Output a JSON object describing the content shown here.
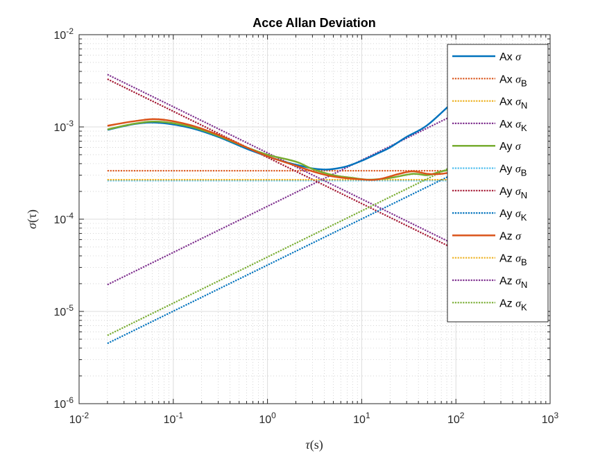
{
  "chart_data": {
    "type": "line",
    "title": "Acce Allan Deviation",
    "xlabel": {
      "symbol": "τ",
      "unit": "(s)"
    },
    "ylabel": {
      "symbol": "σ",
      "arg": "(τ)"
    },
    "xscale": "log",
    "yscale": "log",
    "xlim": [
      0.01,
      1000
    ],
    "ylim": [
      1e-06,
      0.01
    ],
    "x_ticks": [
      {
        "base": "10",
        "exp": "-2"
      },
      {
        "base": "10",
        "exp": "-1"
      },
      {
        "base": "10",
        "exp": "0"
      },
      {
        "base": "10",
        "exp": "1"
      },
      {
        "base": "10",
        "exp": "2"
      },
      {
        "base": "10",
        "exp": "3"
      }
    ],
    "y_ticks": [
      {
        "base": "10",
        "exp": "-6"
      },
      {
        "base": "10",
        "exp": "-5"
      },
      {
        "base": "10",
        "exp": "-4"
      },
      {
        "base": "10",
        "exp": "-3"
      },
      {
        "base": "10",
        "exp": "-2"
      }
    ],
    "grid": true,
    "minor_grid": true,
    "legend_position": "top-right",
    "series": [
      {
        "axis": "Ax",
        "sym": "σ",
        "sub": "",
        "color": "#0072BD",
        "style": "solid",
        "points": [
          [
            0.02,
            0.00093
          ],
          [
            0.04,
            0.00108
          ],
          [
            0.07,
            0.00111
          ],
          [
            0.15,
            0.00098
          ],
          [
            0.3,
            0.00078
          ],
          [
            0.6,
            0.00058
          ],
          [
            1,
            0.00048
          ],
          [
            1.5,
            0.00042
          ],
          [
            2,
            0.00039
          ],
          [
            3,
            0.000355
          ],
          [
            4,
            0.000345
          ],
          [
            5,
            0.00035
          ],
          [
            7,
            0.000375
          ],
          [
            10,
            0.00043
          ],
          [
            15,
            0.00052
          ],
          [
            20,
            0.0006
          ],
          [
            30,
            0.00078
          ],
          [
            50,
            0.00105
          ],
          [
            100,
            0.002
          ]
        ]
      },
      {
        "axis": "Ax",
        "sym": "σ",
        "sub": "B",
        "color": "#D95319",
        "style": "dotted",
        "points": [
          [
            0.02,
            0.000335
          ],
          [
            100,
            0.000335
          ]
        ]
      },
      {
        "axis": "Ax",
        "sym": "σ",
        "sub": "N",
        "color": "#EDB120",
        "style": "dotted",
        "points": [
          [
            0.02,
            0.000265
          ],
          [
            100,
            0.000265
          ]
        ]
      },
      {
        "axis": "Ax",
        "sym": "σ",
        "sub": "K",
        "color": "#7E2F8E",
        "style": "dotted",
        "points": [
          [
            0.02,
            1.95e-05
          ],
          [
            100,
            0.00138
          ]
        ]
      },
      {
        "axis": "Ay",
        "sym": "σ",
        "sub": "",
        "color": "#77AC30",
        "style": "solid",
        "points": [
          [
            0.02,
            0.00094
          ],
          [
            0.04,
            0.00109
          ],
          [
            0.07,
            0.00114
          ],
          [
            0.15,
            0.00101
          ],
          [
            0.3,
            0.0008
          ],
          [
            0.6,
            0.0006
          ],
          [
            1,
            0.0005
          ],
          [
            2,
            0.00042
          ],
          [
            3,
            0.00035
          ],
          [
            5,
            0.0003
          ],
          [
            8,
            0.00028
          ],
          [
            12,
            0.000268
          ],
          [
            20,
            0.00028
          ],
          [
            35,
            0.00031
          ],
          [
            50,
            0.0003
          ],
          [
            70,
            0.00033
          ],
          [
            100,
            0.00035
          ]
        ]
      },
      {
        "axis": "Ay",
        "sym": "σ",
        "sub": "B",
        "color": "#4DBEEE",
        "style": "dotted",
        "points": [
          [
            0.02,
            0.000262
          ],
          [
            100,
            0.000262
          ]
        ]
      },
      {
        "axis": "Ay",
        "sym": "σ",
        "sub": "N",
        "color": "#A2142F",
        "style": "dotted",
        "points": [
          [
            0.02,
            0.0033
          ],
          [
            100,
            4.67e-05
          ]
        ]
      },
      {
        "axis": "Ay",
        "sym": "σ",
        "sub": "K",
        "color": "#0072BD",
        "style": "dotted",
        "points": [
          [
            0.02,
            4.5e-06
          ],
          [
            100,
            0.000318
          ]
        ]
      },
      {
        "axis": "Az",
        "sym": "σ",
        "sub": "",
        "color": "#D95319",
        "style": "solid",
        "points": [
          [
            0.02,
            0.00103
          ],
          [
            0.04,
            0.00116
          ],
          [
            0.07,
            0.00121
          ],
          [
            0.15,
            0.00105
          ],
          [
            0.3,
            0.00082
          ],
          [
            0.6,
            0.0006
          ],
          [
            1,
            0.00048
          ],
          [
            2,
            0.00038
          ],
          [
            3,
            0.00033
          ],
          [
            5,
            0.00029
          ],
          [
            10,
            0.00027
          ],
          [
            15,
            0.00027
          ],
          [
            25,
            0.00031
          ],
          [
            35,
            0.00033
          ],
          [
            50,
            0.00031
          ],
          [
            70,
            0.00031
          ],
          [
            100,
            0.00033
          ]
        ]
      },
      {
        "axis": "Az",
        "sym": "σ",
        "sub": "B",
        "color": "#EDB120",
        "style": "dotted",
        "points": [
          [
            0.02,
            0.000268
          ],
          [
            100,
            0.000268
          ]
        ]
      },
      {
        "axis": "Az",
        "sym": "σ",
        "sub": "N",
        "color": "#7E2F8E",
        "style": "dotted",
        "points": [
          [
            0.02,
            0.0037
          ],
          [
            100,
            5.23e-05
          ]
        ]
      },
      {
        "axis": "Az",
        "sym": "σ",
        "sub": "K",
        "color": "#77AC30",
        "style": "dotted",
        "points": [
          [
            0.02,
            5.5e-06
          ],
          [
            100,
            0.000389
          ]
        ]
      }
    ]
  }
}
